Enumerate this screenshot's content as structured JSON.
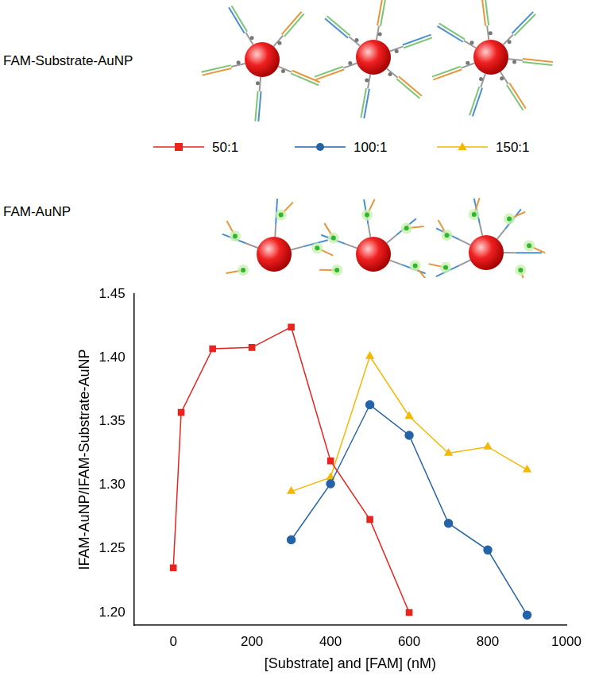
{
  "chart_data": {
    "type": "line",
    "annotations": [
      "FAM-Substrate-AuNP",
      "FAM-AuNP"
    ],
    "x_label": "[Substrate] and [FAM] (nM)",
    "y_label": "IFAM-AuNP/IFAM-Substrate-AuNP",
    "legend": "top",
    "grid": false,
    "xlim": [
      -100,
      1000
    ],
    "xticks": [
      0,
      200,
      400,
      600,
      800,
      1000
    ],
    "ylim": [
      1.19,
      1.45
    ],
    "yticks": [
      {
        "value": 1.2,
        "label": "1.20"
      },
      {
        "value": 1.25,
        "label": "1.25"
      },
      {
        "value": 1.3,
        "label": "1.30"
      },
      {
        "value": 1.35,
        "label": "1.35"
      },
      {
        "value": 1.4,
        "label": "1.40"
      },
      {
        "value": 1.45,
        "label": "1.45"
      }
    ],
    "series": [
      {
        "name": "50:1",
        "color": "#e8241c",
        "marker": "square",
        "x": [
          0,
          20,
          100,
          200,
          300,
          400,
          500,
          600
        ],
        "values": [
          1.235,
          1.357,
          1.407,
          1.408,
          1.424,
          1.319,
          1.273,
          1.2
        ]
      },
      {
        "name": "100:1",
        "color": "#2563a8",
        "marker": "circle",
        "x": [
          300,
          400,
          500,
          600,
          700,
          800,
          900
        ],
        "values": [
          1.257,
          1.301,
          1.363,
          1.339,
          1.27,
          1.249,
          1.198
        ]
      },
      {
        "name": "150:1",
        "color": "#f5b800",
        "marker": "triangle",
        "x": [
          300,
          400,
          500,
          600,
          700,
          800,
          900
        ],
        "values": [
          1.295,
          1.306,
          1.401,
          1.354,
          1.325,
          1.33,
          1.312
        ]
      }
    ]
  }
}
